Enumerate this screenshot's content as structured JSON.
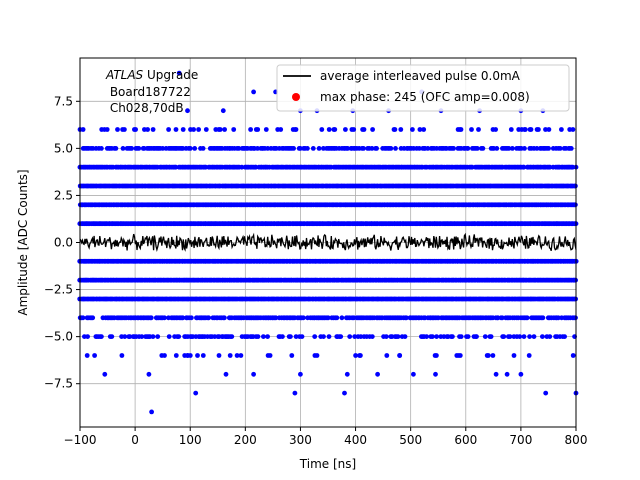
{
  "chart_data": {
    "type": "scatter",
    "title": "",
    "xlabel": "Time [ns]",
    "ylabel": "Amplitude [ADC Counts]",
    "xlim": [
      -100,
      800
    ],
    "ylim": [
      -9.8,
      9.8
    ],
    "xticks": [
      -100,
      0,
      100,
      200,
      300,
      400,
      500,
      600,
      700,
      800
    ],
    "xtick_labels": [
      "−100",
      "0",
      "100",
      "200",
      "300",
      "400",
      "500",
      "600",
      "700",
      "800"
    ],
    "yticks": [
      -7.5,
      -5.0,
      -2.5,
      0.0,
      2.5,
      5.0,
      7.5
    ],
    "ytick_labels": [
      "−7.5",
      "−5.0",
      "−2.5",
      "0.0",
      "2.5",
      "5.0",
      "7.5"
    ],
    "grid": true,
    "legend_position": "upper right",
    "annotation": {
      "italic": "ATLAS",
      "rest": " Upgrade",
      "line2": " Board187722",
      "line3": " Ch028,70dB"
    },
    "colors": {
      "line": "#000000",
      "points": "#0000ff",
      "max_marker": "#ff0000",
      "grid": "#b0b0b0"
    },
    "series": [
      {
        "name": "average interleaved pulse 0.0mA",
        "kind": "line",
        "color": "#000000",
        "x_range": [
          -100,
          800
        ],
        "mean": 0.0,
        "noise_amplitude": 0.45,
        "max_excursion": [
          -0.7,
          0.7
        ]
      },
      {
        "name": "max phase: 245 (OFC amp=0.008)",
        "kind": "marker",
        "color": "#ff0000"
      },
      {
        "name": "",
        "kind": "scatter",
        "color": "#0000ff",
        "levels": [
          {
            "y": 1,
            "density": 1.0
          },
          {
            "y": 2,
            "density": 1.0
          },
          {
            "y": 3,
            "density": 1.0
          },
          {
            "y": 4,
            "density": 0.95
          },
          {
            "y": 5,
            "density": 0.6
          },
          {
            "y": 6,
            "density": 0.2
          },
          {
            "y": -1,
            "density": 1.0
          },
          {
            "y": -2,
            "density": 1.0
          },
          {
            "y": -3,
            "density": 1.0
          },
          {
            "y": -4,
            "density": 0.8
          },
          {
            "y": -5,
            "density": 0.35
          },
          {
            "y": -6,
            "density": 0.08
          }
        ],
        "sparse_points": [
          {
            "x": 80,
            "y": 9
          },
          {
            "x": 215,
            "y": 8
          },
          {
            "x": 255,
            "y": 8
          },
          {
            "x": 330,
            "y": 7
          },
          {
            "x": 520,
            "y": 8
          },
          {
            "x": 95,
            "y": 7
          },
          {
            "x": 160,
            "y": 7
          },
          {
            "x": 300,
            "y": 7
          },
          {
            "x": 395,
            "y": 7
          },
          {
            "x": 460,
            "y": 7
          },
          {
            "x": 555,
            "y": 7
          },
          {
            "x": 625,
            "y": 7
          },
          {
            "x": 700,
            "y": 7
          },
          {
            "x": 740,
            "y": 7
          },
          {
            "x": -55,
            "y": -7
          },
          {
            "x": 25,
            "y": -7
          },
          {
            "x": 110,
            "y": -8
          },
          {
            "x": 165,
            "y": -7
          },
          {
            "x": 215,
            "y": -7
          },
          {
            "x": 290,
            "y": -8
          },
          {
            "x": 300,
            "y": -7
          },
          {
            "x": 380,
            "y": -8
          },
          {
            "x": 385,
            "y": -7
          },
          {
            "x": 440,
            "y": -7
          },
          {
            "x": 505,
            "y": -7
          },
          {
            "x": 545,
            "y": -7
          },
          {
            "x": 655,
            "y": -7
          },
          {
            "x": 675,
            "y": -7
          },
          {
            "x": 700,
            "y": -7
          },
          {
            "x": 745,
            "y": -8
          },
          {
            "x": 800,
            "y": -8
          },
          {
            "x": 30,
            "y": -9
          },
          {
            "x": 95,
            "y": -6
          },
          {
            "x": 185,
            "y": -6
          },
          {
            "x": 245,
            "y": -6
          },
          {
            "x": 330,
            "y": -6
          },
          {
            "x": 400,
            "y": -6
          },
          {
            "x": 480,
            "y": -6
          },
          {
            "x": 590,
            "y": -6
          },
          {
            "x": 715,
            "y": -6
          },
          {
            "x": 795,
            "y": -6
          }
        ]
      }
    ]
  }
}
